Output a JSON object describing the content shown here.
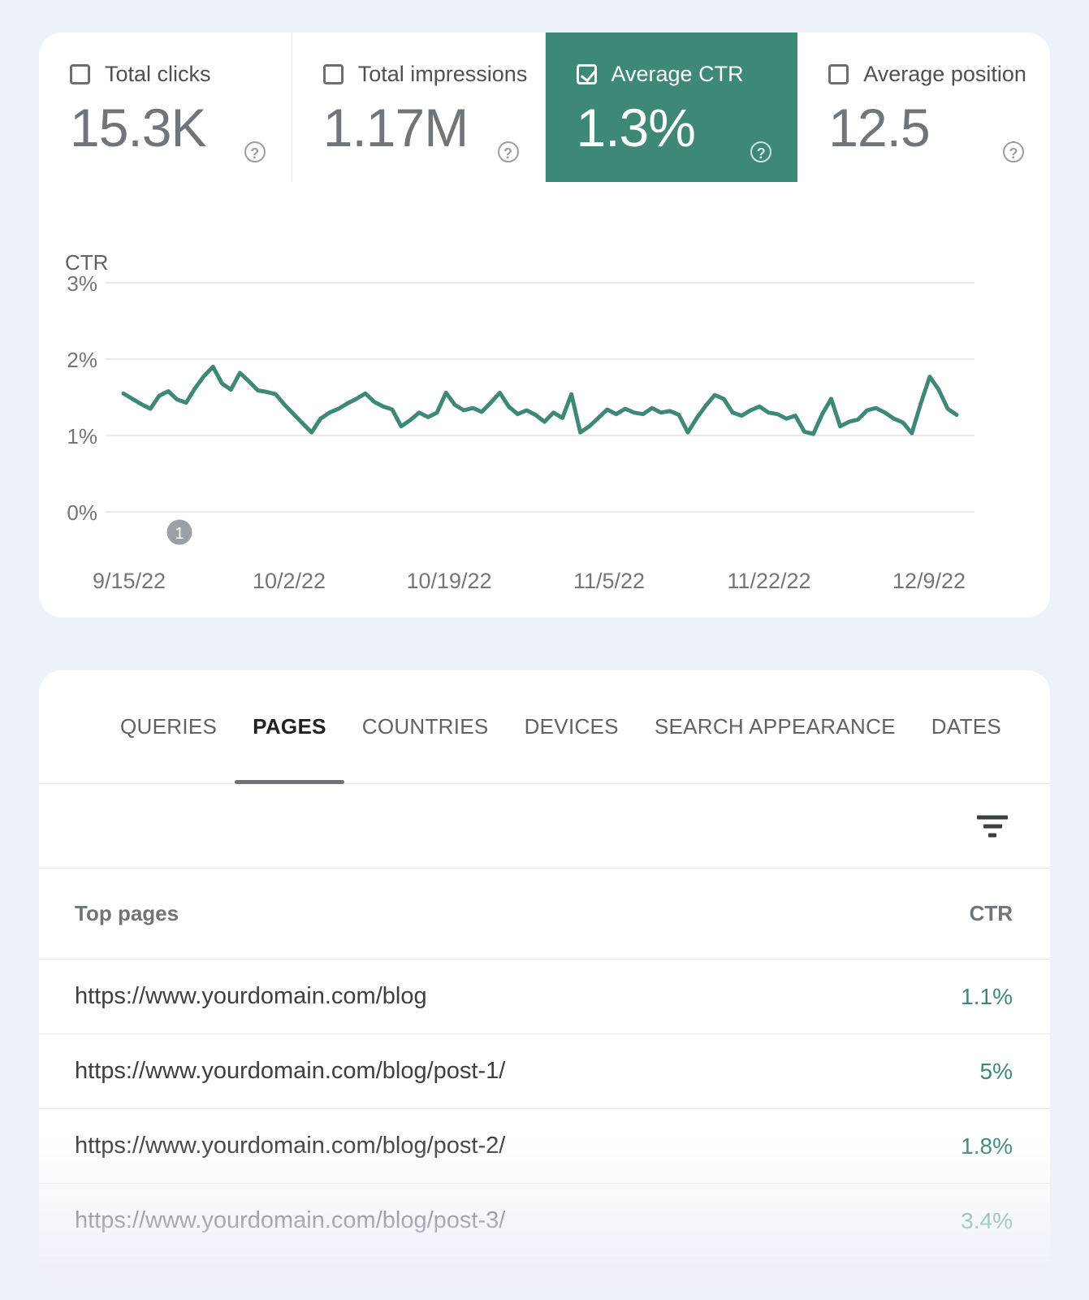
{
  "metrics": {
    "selected_color": "#3e8878",
    "cards": [
      {
        "label": "Total clicks",
        "value": "15.3K",
        "checked": false,
        "selected": false
      },
      {
        "label": "Total impressions",
        "value": "1.17M",
        "checked": false,
        "selected": false
      },
      {
        "label": "Average CTR",
        "value": "1.3%",
        "checked": true,
        "selected": true
      },
      {
        "label": "Average position",
        "value": "12.5",
        "checked": false,
        "selected": false
      }
    ]
  },
  "icons": {
    "help": "?",
    "filter": "filter-list",
    "check": "checkmark"
  },
  "chart_data": {
    "type": "line",
    "title": "CTR",
    "xlabel": "",
    "ylabel": "CTR",
    "ylim": [
      0,
      3
    ],
    "grid": "horizontal",
    "y_tick_labels": [
      "3%",
      "2%",
      "1%",
      "0%"
    ],
    "x_tick_labels": [
      "9/15/22",
      "10/2/22",
      "10/19/22",
      "11/5/22",
      "11/22/22",
      "12/9/22"
    ],
    "x_interval": "daily",
    "annotation_marker": {
      "label": "1"
    },
    "series": [
      {
        "name": "Average CTR",
        "color": "#3e8878",
        "unit": "%",
        "values": [
          1.55,
          1.48,
          1.41,
          1.35,
          1.52,
          1.58,
          1.47,
          1.43,
          1.62,
          1.78,
          1.9,
          1.68,
          1.6,
          1.82,
          1.71,
          1.59,
          1.57,
          1.54,
          1.4,
          1.28,
          1.16,
          1.04,
          1.22,
          1.3,
          1.35,
          1.42,
          1.48,
          1.55,
          1.44,
          1.38,
          1.34,
          1.12,
          1.2,
          1.3,
          1.24,
          1.3,
          1.56,
          1.4,
          1.33,
          1.36,
          1.31,
          1.43,
          1.56,
          1.38,
          1.28,
          1.33,
          1.27,
          1.18,
          1.3,
          1.23,
          1.54,
          1.04,
          1.12,
          1.23,
          1.34,
          1.28,
          1.35,
          1.3,
          1.28,
          1.36,
          1.3,
          1.32,
          1.27,
          1.04,
          1.23,
          1.39,
          1.53,
          1.48,
          1.3,
          1.26,
          1.33,
          1.38,
          1.3,
          1.28,
          1.22,
          1.26,
          1.05,
          1.02,
          1.28,
          1.48,
          1.12,
          1.18,
          1.21,
          1.33,
          1.36,
          1.3,
          1.22,
          1.17,
          1.03,
          1.42,
          1.77,
          1.6,
          1.35,
          1.27
        ]
      }
    ]
  },
  "tabs": {
    "items": [
      "QUERIES",
      "PAGES",
      "COUNTRIES",
      "DEVICES",
      "SEARCH APPEARANCE",
      "DATES"
    ],
    "active": "PAGES"
  },
  "table": {
    "columns": {
      "pages": "Top pages",
      "ctr": "CTR"
    },
    "rows": [
      {
        "url": "https://www.yourdomain.com/blog",
        "ctr": "1.1%"
      },
      {
        "url": "https://www.yourdomain.com/blog/post-1/",
        "ctr": "5%"
      },
      {
        "url": "https://www.yourdomain.com/blog/post-2/",
        "ctr": "1.8%"
      },
      {
        "url": "https://www.yourdomain.com/blog/post-3/",
        "ctr": "3.4%"
      }
    ]
  }
}
